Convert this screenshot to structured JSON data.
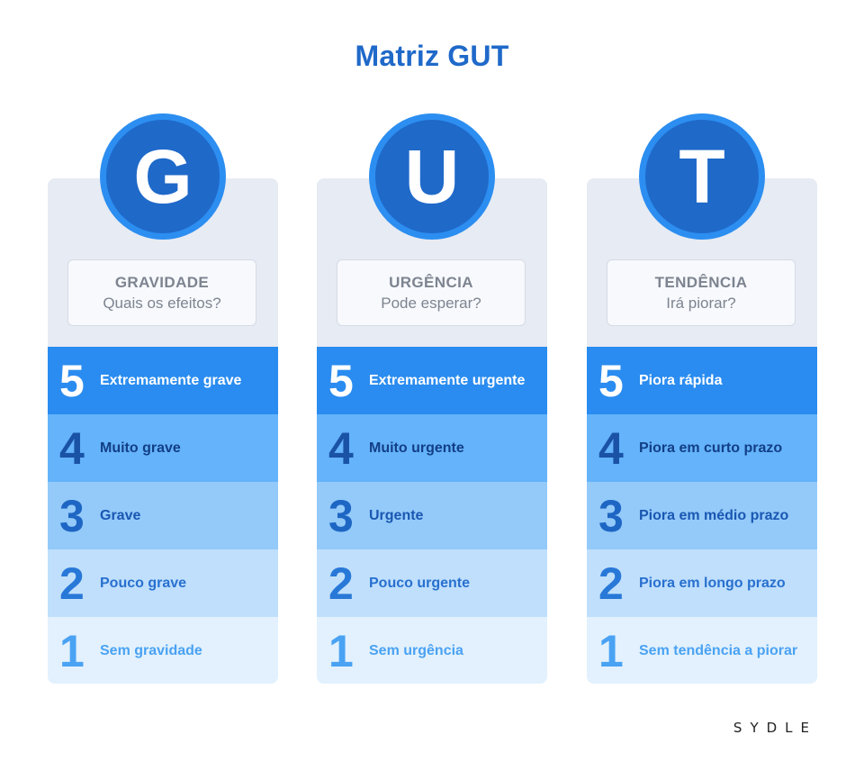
{
  "title": "Matriz GUT",
  "brand": "SYDLE",
  "colors": {
    "primary": "#1f69c9",
    "ring": "#2c8ef0",
    "panel": "#e7ebf3"
  },
  "columns": [
    {
      "letter": "G",
      "head": "GRAVIDADE",
      "question": "Quais os efeitos?",
      "levels": [
        {
          "num": "5",
          "label": "Extremamente grave"
        },
        {
          "num": "4",
          "label": "Muito grave"
        },
        {
          "num": "3",
          "label": "Grave"
        },
        {
          "num": "2",
          "label": "Pouco grave"
        },
        {
          "num": "1",
          "label": "Sem gravidade"
        }
      ]
    },
    {
      "letter": "U",
      "head": "URGÊNCIA",
      "question": "Pode esperar?",
      "levels": [
        {
          "num": "5",
          "label": "Extremamente urgente"
        },
        {
          "num": "4",
          "label": "Muito urgente"
        },
        {
          "num": "3",
          "label": "Urgente"
        },
        {
          "num": "2",
          "label": "Pouco urgente"
        },
        {
          "num": "1",
          "label": "Sem urgência"
        }
      ]
    },
    {
      "letter": "T",
      "head": "TENDÊNCIA",
      "question": "Irá piorar?",
      "levels": [
        {
          "num": "5",
          "label": "Piora rápida"
        },
        {
          "num": "4",
          "label": "Piora em curto prazo"
        },
        {
          "num": "3",
          "label": "Piora em médio prazo"
        },
        {
          "num": "2",
          "label": "Piora em longo prazo"
        },
        {
          "num": "1",
          "label": "Sem tendência a piorar"
        }
      ]
    }
  ]
}
